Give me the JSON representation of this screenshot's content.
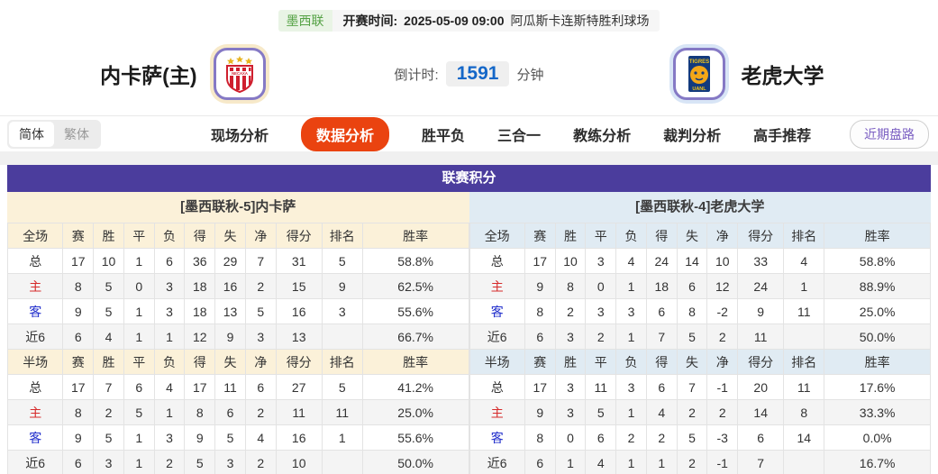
{
  "match_header": {
    "league": "墨西联",
    "kickoff_label": "开赛时间:",
    "kickoff_datetime": "2025-05-09 09:00",
    "venue": "阿瓜斯卡连斯特胜利球场",
    "home_team_name": "内卡萨(主)",
    "away_team_name": "老虎大学",
    "countdown_label": "倒计时:",
    "countdown_value": "1591",
    "countdown_unit": "分钟"
  },
  "nav": {
    "lang_simplified": "简体",
    "lang_traditional": "繁体",
    "selected_lang": "简体",
    "tabs": [
      {
        "label": "现场分析",
        "active": false
      },
      {
        "label": "数据分析",
        "active": true
      },
      {
        "label": "胜平负",
        "active": false
      },
      {
        "label": "三合一",
        "active": false
      },
      {
        "label": "教练分析",
        "active": false
      },
      {
        "label": "裁判分析",
        "active": false
      },
      {
        "label": "高手推荐",
        "active": false
      }
    ],
    "recent_trend_button": "近期盘路"
  },
  "standings": {
    "title": "联赛积分",
    "full_time_label": "全场",
    "half_time_label": "半场",
    "columns": [
      "赛",
      "胜",
      "平",
      "负",
      "得",
      "失",
      "净",
      "得分",
      "排名",
      "胜率"
    ],
    "home": {
      "team_header": "[墨西联秋-5]内卡萨",
      "full_time_rows": [
        {
          "label": "总",
          "values": [
            "17",
            "10",
            "1",
            "6",
            "36",
            "29",
            "7",
            "31",
            "5",
            "58.8%"
          ]
        },
        {
          "label": "主",
          "values": [
            "8",
            "5",
            "0",
            "3",
            "18",
            "16",
            "2",
            "15",
            "9",
            "62.5%"
          ]
        },
        {
          "label": "客",
          "values": [
            "9",
            "5",
            "1",
            "3",
            "18",
            "13",
            "5",
            "16",
            "3",
            "55.6%"
          ]
        },
        {
          "label": "近6",
          "values": [
            "6",
            "4",
            "1",
            "1",
            "12",
            "9",
            "3",
            "13",
            "",
            "66.7%"
          ]
        }
      ],
      "half_time_rows": [
        {
          "label": "总",
          "values": [
            "17",
            "7",
            "6",
            "4",
            "17",
            "11",
            "6",
            "27",
            "5",
            "41.2%"
          ]
        },
        {
          "label": "主",
          "values": [
            "8",
            "2",
            "5",
            "1",
            "8",
            "6",
            "2",
            "11",
            "11",
            "25.0%"
          ]
        },
        {
          "label": "客",
          "values": [
            "9",
            "5",
            "1",
            "3",
            "9",
            "5",
            "4",
            "16",
            "1",
            "55.6%"
          ]
        },
        {
          "label": "近6",
          "values": [
            "6",
            "3",
            "1",
            "2",
            "5",
            "3",
            "2",
            "10",
            "",
            "50.0%"
          ]
        }
      ]
    },
    "away": {
      "team_header": "[墨西联秋-4]老虎大学",
      "full_time_rows": [
        {
          "label": "总",
          "values": [
            "17",
            "10",
            "3",
            "4",
            "24",
            "14",
            "10",
            "33",
            "4",
            "58.8%"
          ]
        },
        {
          "label": "主",
          "values": [
            "9",
            "8",
            "0",
            "1",
            "18",
            "6",
            "12",
            "24",
            "1",
            "88.9%"
          ]
        },
        {
          "label": "客",
          "values": [
            "8",
            "2",
            "3",
            "3",
            "6",
            "8",
            "-2",
            "9",
            "11",
            "25.0%"
          ]
        },
        {
          "label": "近6",
          "values": [
            "6",
            "3",
            "2",
            "1",
            "7",
            "5",
            "2",
            "11",
            "",
            "50.0%"
          ]
        }
      ],
      "half_time_rows": [
        {
          "label": "总",
          "values": [
            "17",
            "3",
            "11",
            "3",
            "6",
            "7",
            "-1",
            "20",
            "11",
            "17.6%"
          ]
        },
        {
          "label": "主",
          "values": [
            "9",
            "3",
            "5",
            "1",
            "4",
            "2",
            "2",
            "14",
            "8",
            "33.3%"
          ]
        },
        {
          "label": "客",
          "values": [
            "8",
            "0",
            "6",
            "2",
            "2",
            "5",
            "-3",
            "6",
            "14",
            "0.0%"
          ]
        },
        {
          "label": "近6",
          "values": [
            "6",
            "1",
            "4",
            "1",
            "1",
            "2",
            "-1",
            "7",
            "",
            "16.7%"
          ]
        }
      ]
    }
  },
  "colors": {
    "active_tab_bg": "#ea4310",
    "table_title_bg": "#4b3d9d",
    "home_header_bg": "#fbf1d9",
    "away_header_bg": "#e0ebf3",
    "countdown_value_color": "#1467c8",
    "league_badge_color": "#55a245",
    "home_row_label_color": "#d62b2b",
    "away_row_label_color": "#2330cc",
    "recent_button_color": "#7a5ec2"
  }
}
